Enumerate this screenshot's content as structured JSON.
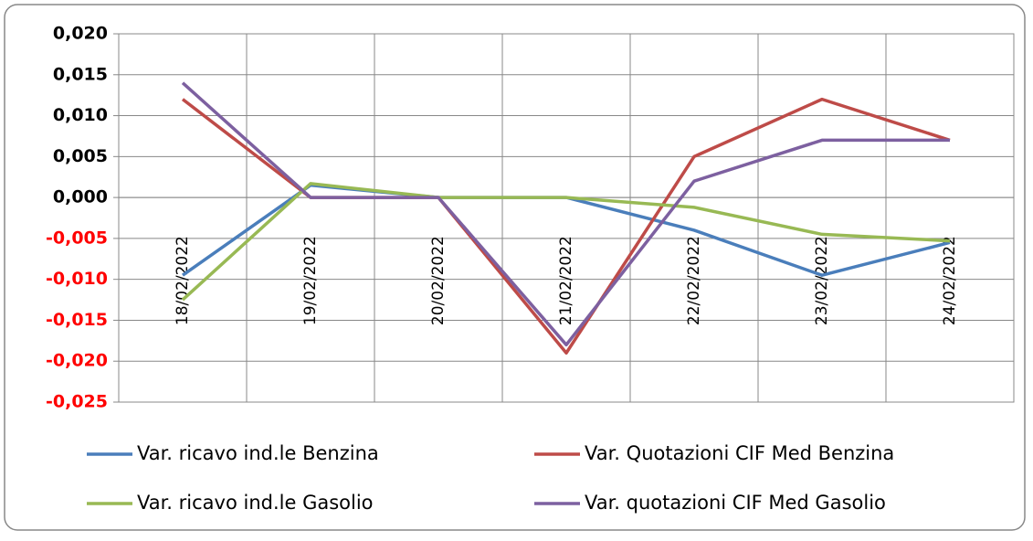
{
  "chart_data": {
    "type": "line",
    "categories": [
      "18/02/2022",
      "19/02/2022",
      "20/02/2022",
      "21/02/2022",
      "22/02/2022",
      "23/02/2022",
      "24/02/2022"
    ],
    "series": [
      {
        "name": "Var. ricavo ind.le Benzina",
        "color": "#4a7ebb",
        "values": [
          -0.0095,
          0.0015,
          0,
          0,
          -0.004,
          -0.0095,
          -0.0055
        ]
      },
      {
        "name": "Var. Quotazioni CIF Med Benzina",
        "color": "#be4b48",
        "values": [
          0.012,
          0,
          0,
          -0.019,
          0.005,
          0.012,
          0.007
        ]
      },
      {
        "name": "Var. ricavo ind.le Gasolio",
        "color": "#98b954",
        "values": [
          -0.0125,
          0.0017,
          0,
          0,
          -0.0012,
          -0.0045,
          -0.0053
        ]
      },
      {
        "name": "Var. quotazioni CIF Med Gasolio",
        "color": "#7d60a0",
        "values": [
          0.014,
          0,
          0,
          -0.018,
          0.002,
          0.007,
          0.007
        ]
      }
    ],
    "ylim": [
      -0.025,
      0.02
    ],
    "yticks": [
      {
        "value": -0.025,
        "label": "-0,025"
      },
      {
        "value": -0.02,
        "label": "-0,020"
      },
      {
        "value": -0.015,
        "label": "-0,015"
      },
      {
        "value": -0.01,
        "label": "-0,010"
      },
      {
        "value": -0.005,
        "label": "-0,005"
      },
      {
        "value": 0,
        "label": "0,000"
      },
      {
        "value": 0.005,
        "label": "0,005"
      },
      {
        "value": 0.01,
        "label": "0,010"
      },
      {
        "value": 0.015,
        "label": "0,015"
      },
      {
        "value": 0.02,
        "label": "0,020"
      }
    ],
    "negative_tick_color": "#ff0000",
    "grid": true,
    "legend": "bottom"
  }
}
